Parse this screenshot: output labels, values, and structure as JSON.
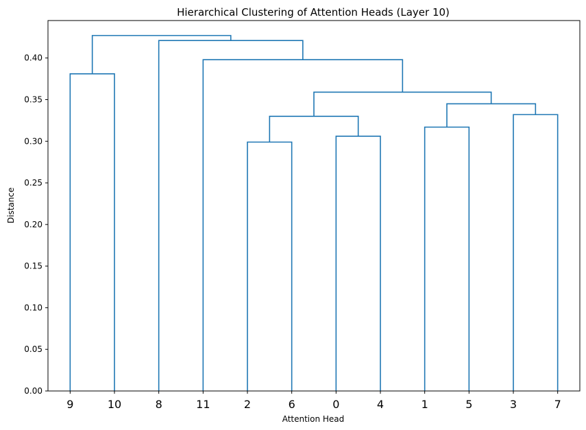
{
  "chart_data": {
    "type": "dendrogram",
    "title": "Hierarchical Clustering of Attention Heads (Layer 10)",
    "xlabel": "Attention Head",
    "ylabel": "Distance",
    "ylim": [
      0,
      0.445
    ],
    "yticks": [
      "0.00",
      "0.05",
      "0.10",
      "0.15",
      "0.20",
      "0.25",
      "0.30",
      "0.35",
      "0.40"
    ],
    "leaves": [
      "9",
      "10",
      "8",
      "11",
      "2",
      "6",
      "0",
      "4",
      "1",
      "5",
      "3",
      "7"
    ],
    "merges": [
      {
        "left": "leaf:0",
        "right": "leaf:1",
        "distance": 0.381
      },
      {
        "left": "leaf:4",
        "right": "leaf:5",
        "distance": 0.299
      },
      {
        "left": "leaf:6",
        "right": "leaf:7",
        "distance": 0.306
      },
      {
        "left": "leaf:8",
        "right": "leaf:9",
        "distance": 0.317
      },
      {
        "left": "leaf:10",
        "right": "leaf:11",
        "distance": 0.332
      },
      {
        "left": "node:1",
        "right": "node:2",
        "distance": 0.33
      },
      {
        "left": "node:3",
        "right": "node:4",
        "distance": 0.345
      },
      {
        "left": "node:5",
        "right": "node:6",
        "distance": 0.359
      },
      {
        "left": "leaf:3",
        "right": "node:7",
        "distance": 0.398
      },
      {
        "left": "leaf:2",
        "right": "node:8",
        "distance": 0.421
      },
      {
        "left": "node:0",
        "right": "node:9",
        "distance": 0.427
      }
    ],
    "grid": false,
    "link_color": "#1f77b4"
  }
}
